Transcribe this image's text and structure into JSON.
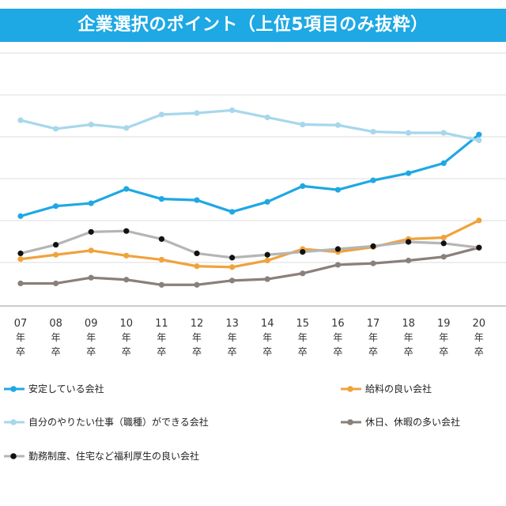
{
  "title": "企業選択のポイント（上位5項目のみ抜粋）",
  "colors": {
    "title_bg": "#1ea8e4",
    "grid": "#d8d8d8",
    "axis": "#555555"
  },
  "chart_data": {
    "type": "line",
    "categories": [
      "07",
      "08",
      "09",
      "10",
      "11",
      "12",
      "13",
      "14",
      "15",
      "16",
      "17",
      "18",
      "19",
      "20"
    ],
    "category_suffix": [
      "年",
      "卒"
    ],
    "grid": true,
    "legend_position": "bottom",
    "series": [
      {
        "name": "安定している会社",
        "color": "#1ea8e4",
        "marker": "#1ea8e4",
        "values": [
          43,
          46.5,
          47.5,
          52.5,
          49,
          48.6,
          44.5,
          48,
          53.5,
          52.2,
          55.5,
          58,
          61.5,
          71.5
        ]
      },
      {
        "name": "給料の良い会社",
        "color": "#f0a23c",
        "marker": "#f0a23c",
        "values": [
          28,
          29.5,
          31,
          29.2,
          27.8,
          25.5,
          25.2,
          27.5,
          31.5,
          30.5,
          32.2,
          35,
          35.5,
          41.5
        ]
      },
      {
        "name": "自分のやりたい仕事（職種）ができる会社",
        "color": "#a7d7ec",
        "marker": "#a7d7ec",
        "values": [
          76.5,
          73.5,
          75,
          73.8,
          78.5,
          79,
          80,
          77.5,
          75,
          74.8,
          72.5,
          72.1,
          72.1,
          69.5
        ]
      },
      {
        "name": "休日、休暇の多い会社",
        "color": "#8a7f7a",
        "marker": "#8a7f7a",
        "values": [
          19.5,
          19.5,
          21.5,
          20.8,
          19,
          19,
          20.5,
          21,
          23,
          26,
          26.5,
          27.5,
          28.8,
          32
        ]
      },
      {
        "name": "勤務制度、住宅など福利厚生の良い会社",
        "color": "#b5b5b5",
        "marker": "#111111",
        "values": [
          30,
          33,
          37.5,
          37.8,
          35,
          30,
          28.5,
          29.5,
          30.5,
          31.5,
          32.5,
          34,
          33.5,
          32
        ]
      }
    ]
  }
}
